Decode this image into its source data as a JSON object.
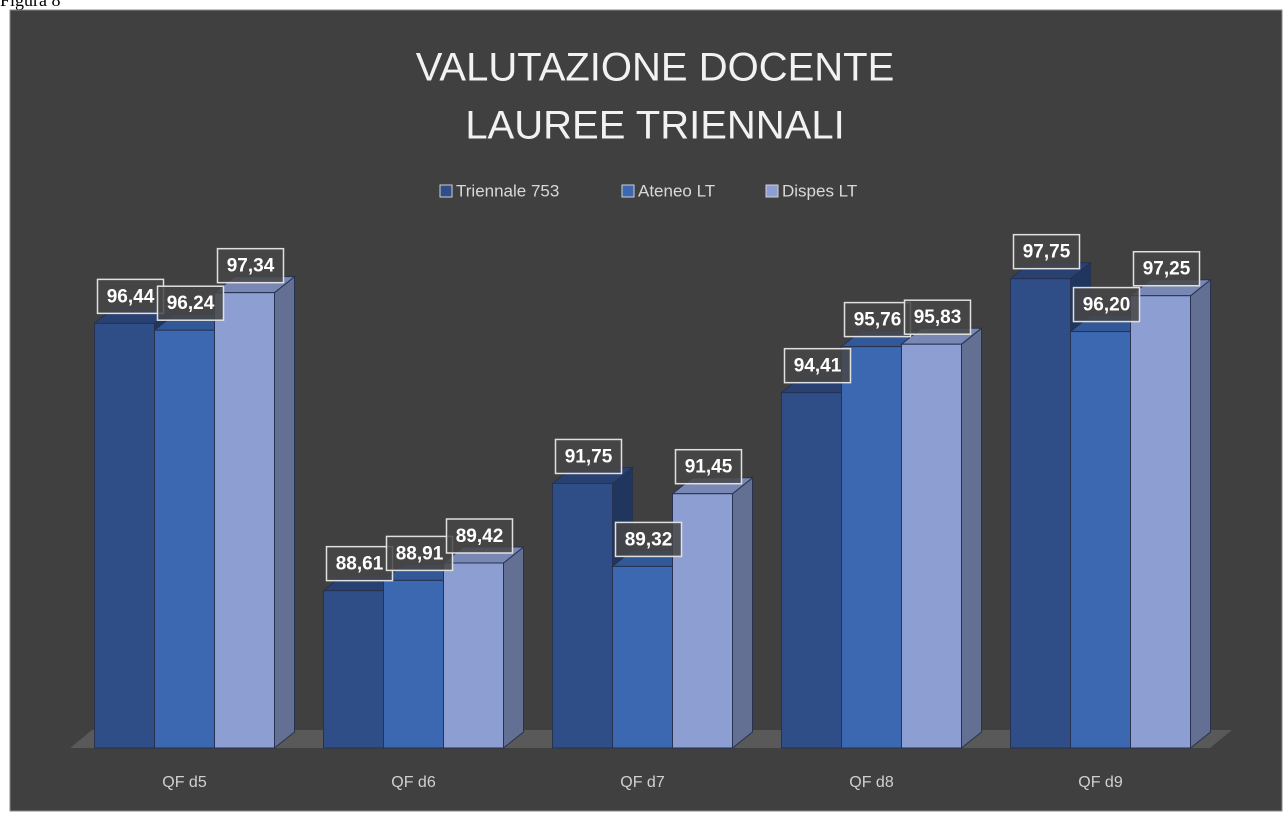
{
  "caption": "Figura 8",
  "chart_data": {
    "type": "bar3d",
    "title": [
      "VALUTAZIONE DOCENTE",
      "LAUREE TRIENNALI"
    ],
    "categories": [
      "QF d5",
      "QF d6",
      "QF d7",
      "QF d8",
      "QF d9"
    ],
    "series": [
      {
        "name": "Triennale 753",
        "color": "#2f4d86",
        "values": [
          96.44,
          88.61,
          91.75,
          94.41,
          97.75
        ],
        "value_labels": [
          "96,44",
          "88,61",
          "91,75",
          "94,41",
          "97,75"
        ]
      },
      {
        "name": "Ateneo LT",
        "color": "#3c68b2",
        "values": [
          96.24,
          88.91,
          89.32,
          95.76,
          96.2
        ],
        "value_labels": [
          "96,24",
          "88,91",
          "89,32",
          "95,76",
          "96,20"
        ]
      },
      {
        "name": "Dispes LT",
        "color": "#8d9fd2",
        "values": [
          97.34,
          89.42,
          91.45,
          95.83,
          97.25
        ],
        "value_labels": [
          "97,34",
          "89,42",
          "91,45",
          "95,83",
          "97,25"
        ]
      }
    ],
    "ylim": [
      84,
      99
    ]
  }
}
